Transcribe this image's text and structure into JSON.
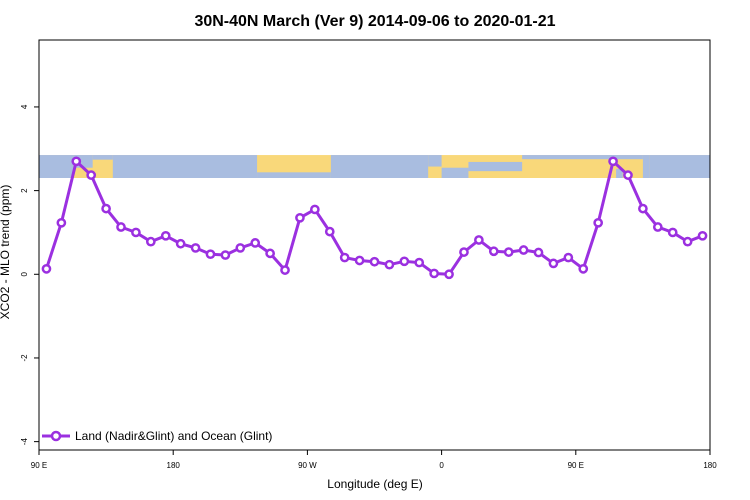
{
  "chart_data": {
    "type": "line",
    "title": "30N-40N March (Ver 9)   2014-09-06 to 2020-01-21",
    "xlabel": "Longitude (deg E)",
    "ylabel": "XCO2 - MLO trend (ppm)",
    "xlim": [
      90,
      540
    ],
    "ylim": [
      -4.2,
      5.6
    ],
    "x_ticks": [
      {
        "value": 90,
        "label": "90 E"
      },
      {
        "value": 180,
        "label": "180"
      },
      {
        "value": 270,
        "label": "90 W"
      },
      {
        "value": 360,
        "label": "0"
      },
      {
        "value": 450,
        "label": "90 E"
      },
      {
        "value": 540,
        "label": "180"
      }
    ],
    "y_ticks": [
      {
        "value": -4,
        "label": "-4"
      },
      {
        "value": -2,
        "label": "-2"
      },
      {
        "value": 0,
        "label": "0"
      },
      {
        "value": 2,
        "label": "2"
      },
      {
        "value": 4,
        "label": "4"
      }
    ],
    "map_band": {
      "y_min": 2.3,
      "y_max": 2.85
    },
    "series": [
      {
        "name": "Land (Nadir&Glint) and Ocean (Glint)",
        "color": "#9b30e0",
        "x": [
          95,
          105,
          115,
          125,
          135,
          145,
          155,
          165,
          175,
          185,
          195,
          205,
          215,
          225,
          235,
          245,
          255,
          265,
          275,
          285,
          295,
          305,
          315,
          325,
          335,
          345,
          355,
          365,
          375,
          385,
          395,
          405,
          415,
          425,
          435,
          445,
          455,
          465,
          475,
          485,
          495,
          505,
          515,
          525,
          535
        ],
        "values": [
          0.13,
          1.23,
          2.7,
          2.37,
          1.57,
          1.13,
          1.0,
          0.78,
          0.92,
          0.73,
          0.63,
          0.48,
          0.46,
          0.63,
          0.75,
          0.5,
          0.1,
          1.35,
          1.55,
          1.02,
          0.4,
          0.33,
          0.3,
          0.23,
          0.31,
          0.28,
          0.02,
          0.0,
          0.53,
          0.82,
          0.55,
          0.53,
          0.58,
          0.52,
          0.26,
          0.4,
          0.13,
          1.23,
          2.7,
          2.37,
          1.57,
          1.13,
          1.0,
          0.78,
          0.92
        ]
      }
    ],
    "legend": {
      "position": "bottom-left"
    }
  }
}
